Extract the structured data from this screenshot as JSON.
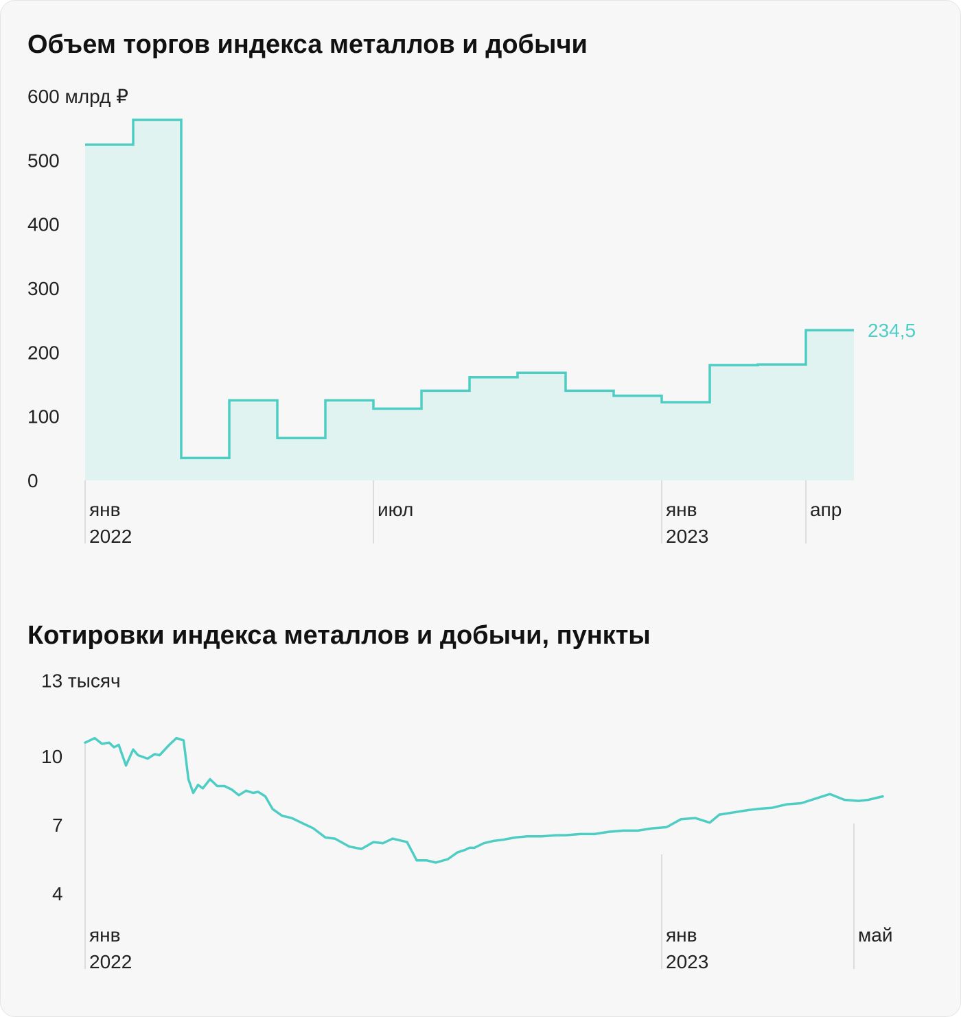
{
  "colors": {
    "accent": "#4ecdc4",
    "fill": "#e1f3f0",
    "axis": "#cfcfcf",
    "text": "#222222"
  },
  "chart_data": [
    {
      "type": "area",
      "title": "Объем торгов индекса металлов и добычи",
      "ylabel": "",
      "y_unit_label": "600 млрд ₽",
      "ylim": [
        0,
        600
      ],
      "y_ticks": [
        {
          "value": 0,
          "label": "0"
        },
        {
          "value": 100,
          "label": "100"
        },
        {
          "value": 200,
          "label": "200"
        },
        {
          "value": 300,
          "label": "300"
        },
        {
          "value": 400,
          "label": "400"
        },
        {
          "value": 500,
          "label": "500"
        },
        {
          "value": 600,
          "label": "600 млрд ₽"
        }
      ],
      "x_ticks": [
        {
          "month_index": 0,
          "label": "янв",
          "year": "2022"
        },
        {
          "month_index": 6,
          "label": "июл",
          "year": ""
        },
        {
          "month_index": 12,
          "label": "янв",
          "year": "2023"
        },
        {
          "month_index": 15,
          "label": "апр",
          "year": ""
        }
      ],
      "x": [
        "2022-01",
        "2022-02",
        "2022-03",
        "2022-04",
        "2022-05",
        "2022-06",
        "2022-07",
        "2022-08",
        "2022-09",
        "2022-10",
        "2022-11",
        "2022-12",
        "2023-01",
        "2023-02",
        "2023-03",
        "2023-04"
      ],
      "values": [
        524,
        563,
        35,
        125,
        66,
        125,
        112,
        140,
        161,
        168,
        140,
        132,
        122,
        180,
        181,
        234.5
      ],
      "last_label": "234,5",
      "grid": false
    },
    {
      "type": "line",
      "title": "Котировки индекса металлов и добычи, пункты",
      "y_unit_label": "13 тысяч",
      "ylim": [
        4000,
        13000
      ],
      "y_ticks": [
        {
          "value": 4000,
          "label": "4"
        },
        {
          "value": 7000,
          "label": "7"
        },
        {
          "value": 10000,
          "label": "10"
        },
        {
          "value": 13000,
          "label": "13 тысяч"
        }
      ],
      "x_ticks": [
        {
          "month_index": 0,
          "label": "янв",
          "year": "2022"
        },
        {
          "month_index": 12,
          "label": "янв",
          "year": "2023"
        },
        {
          "month_index": 16,
          "label": "май",
          "year": ""
        }
      ],
      "x_month": [
        0,
        0.2,
        0.35,
        0.5,
        0.6,
        0.7,
        0.85,
        1.0,
        1.1,
        1.3,
        1.45,
        1.55,
        1.75,
        1.9,
        2.05,
        2.15,
        2.25,
        2.35,
        2.45,
        2.6,
        2.75,
        2.9,
        3.05,
        3.2,
        3.35,
        3.5,
        3.6,
        3.75,
        3.9,
        4.1,
        4.3,
        4.5,
        4.75,
        5.0,
        5.2,
        5.5,
        5.75,
        6.0,
        6.2,
        6.4,
        6.7,
        6.9,
        7.1,
        7.3,
        7.55,
        7.75,
        7.9,
        8.0,
        8.1,
        8.3,
        8.5,
        8.7,
        8.95,
        9.2,
        9.5,
        9.8,
        10.0,
        10.3,
        10.6,
        10.9,
        11.2,
        11.5,
        11.8,
        12.1,
        12.4,
        12.7,
        13.0,
        13.2,
        13.5,
        13.8,
        14.0,
        14.3,
        14.6,
        14.9,
        15.2,
        15.5,
        15.8,
        16.1,
        16.3,
        16.6
      ],
      "values": [
        10600,
        10800,
        10550,
        10600,
        10400,
        10500,
        9600,
        10300,
        10050,
        9900,
        10100,
        10050,
        10500,
        10800,
        10700,
        9000,
        8400,
        8750,
        8600,
        9000,
        8700,
        8700,
        8550,
        8300,
        8500,
        8400,
        8450,
        8250,
        7700,
        7400,
        7300,
        7100,
        6850,
        6450,
        6400,
        6050,
        5950,
        6250,
        6200,
        6400,
        6250,
        5450,
        5450,
        5350,
        5500,
        5800,
        5900,
        6000,
        6000,
        6200,
        6300,
        6350,
        6450,
        6500,
        6500,
        6550,
        6550,
        6600,
        6600,
        6700,
        6750,
        6750,
        6850,
        6900,
        7250,
        7300,
        7100,
        7450,
        7550,
        7650,
        7700,
        7750,
        7900,
        7950,
        8150,
        8350,
        8100,
        8050,
        8100,
        8250
      ],
      "grid": false
    }
  ]
}
